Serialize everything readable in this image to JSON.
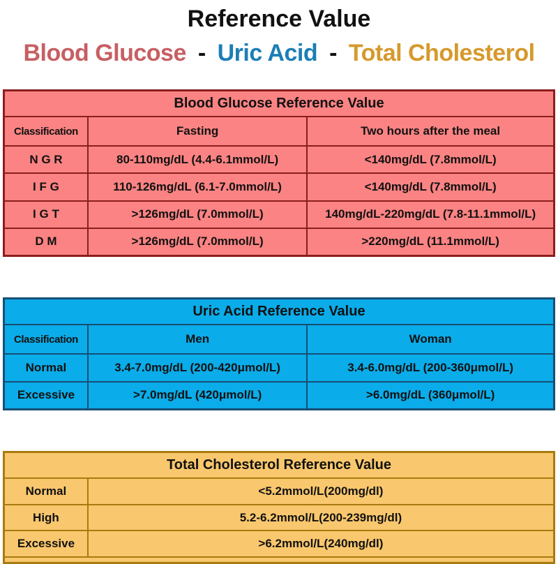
{
  "title": "Reference Value",
  "subtitle": {
    "blood_glucose": "Blood Glucose",
    "sep1": "-",
    "uric_acid": "Uric Acid",
    "sep2": "-",
    "total_cholesterol": "Total Cholesterol"
  },
  "colors": {
    "blood_glucose_accent": "#C75F63",
    "uric_acid_accent": "#1C7EB6",
    "total_cholesterol_accent": "#D6992C",
    "blood_glucose_table_bg": "#FC8383",
    "blood_glucose_table_border": "#8A1E1E",
    "uric_acid_table_bg": "#0AACE9",
    "uric_acid_table_border": "#174F75",
    "total_cholesterol_table_bg": "#F9C76D",
    "total_cholesterol_table_border": "#A87B10",
    "text": "#111111"
  },
  "tables": [
    {
      "title": "Blood Glucose Reference Value",
      "columns": [
        "Classification",
        "Fasting",
        "Two hours after the meal"
      ],
      "rows": [
        [
          "N G R",
          "80-110mg/dL (4.4-6.1mmol/L)",
          "<140mg/dL (7.8mmol/L)"
        ],
        [
          "I F G",
          "110-126mg/dL (6.1-7.0mmol/L)",
          "<140mg/dL (7.8mmol/L)"
        ],
        [
          "I G T",
          ">126mg/dL (7.0mmol/L)",
          "140mg/dL-220mg/dL (7.8-11.1mmol/L)"
        ],
        [
          "D M",
          ">126mg/dL (7.0mmol/L)",
          ">220mg/dL (11.1mmol/L)"
        ]
      ]
    },
    {
      "title": "Uric Acid Reference Value",
      "columns": [
        "Classification",
        "Men",
        "Woman"
      ],
      "rows": [
        [
          "Normal",
          "3.4-7.0mg/dL (200-420μmol/L)",
          "3.4-6.0mg/dL (200-360μmol/L)"
        ],
        [
          "Excessive",
          ">7.0mg/dL (420μmol/L)",
          ">6.0mg/dL (360μmol/L)"
        ]
      ]
    },
    {
      "title": "Total Cholesterol Reference Value",
      "rows": [
        [
          "Normal",
          "<5.2mmol/L(200mg/dl)"
        ],
        [
          "High",
          "5.2-6.2mmol/L(200-239mg/dl)"
        ],
        [
          "Excessive",
          ">6.2mmol/L(240mg/dl)"
        ]
      ]
    }
  ]
}
